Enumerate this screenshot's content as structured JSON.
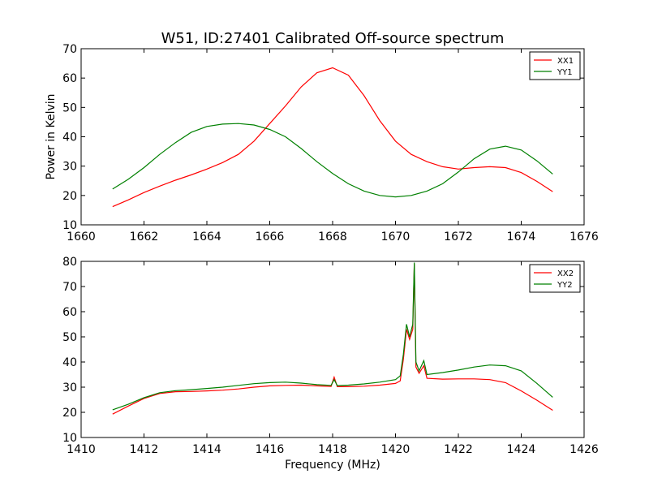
{
  "title": "W51, ID:27401 Calibrated Off-source spectrum",
  "chart_data": [
    {
      "type": "line",
      "title": "W51, ID:27401 Calibrated Off-source spectrum",
      "xlabel": "",
      "ylabel": "Power in Kelvin",
      "xlim": [
        1660,
        1676
      ],
      "ylim": [
        10,
        70
      ],
      "xticks": [
        1660,
        1662,
        1664,
        1666,
        1668,
        1670,
        1672,
        1674,
        1676
      ],
      "yticks": [
        10,
        20,
        30,
        40,
        50,
        60,
        70
      ],
      "grid": false,
      "legend": "top-right",
      "series": [
        {
          "name": "XX1",
          "color": "#ff0000",
          "x": [
            1661.0,
            1661.5,
            1662.0,
            1662.5,
            1663.0,
            1663.5,
            1664.0,
            1664.5,
            1665.0,
            1665.5,
            1666.0,
            1666.5,
            1667.0,
            1667.5,
            1668.0,
            1668.5,
            1669.0,
            1669.5,
            1670.0,
            1670.5,
            1671.0,
            1671.5,
            1672.0,
            1672.5,
            1673.0,
            1673.5,
            1674.0,
            1674.5,
            1675.0
          ],
          "y": [
            16.2,
            18.5,
            21.0,
            23.2,
            25.2,
            27.0,
            29.0,
            31.2,
            34.0,
            38.5,
            44.5,
            50.5,
            57.0,
            61.8,
            63.5,
            61.0,
            54.0,
            45.5,
            38.5,
            34.0,
            31.5,
            29.8,
            29.0,
            29.5,
            29.8,
            29.5,
            27.8,
            24.8,
            21.3
          ]
        },
        {
          "name": "YY1",
          "color": "#008000",
          "x": [
            1661.0,
            1661.5,
            1662.0,
            1662.5,
            1663.0,
            1663.5,
            1664.0,
            1664.5,
            1665.0,
            1665.5,
            1666.0,
            1666.5,
            1667.0,
            1667.5,
            1668.0,
            1668.5,
            1669.0,
            1669.5,
            1670.0,
            1670.5,
            1671.0,
            1671.5,
            1672.0,
            1672.5,
            1673.0,
            1673.5,
            1674.0,
            1674.5,
            1675.0
          ],
          "y": [
            22.2,
            25.5,
            29.5,
            34.0,
            38.0,
            41.5,
            43.5,
            44.3,
            44.5,
            44.0,
            42.5,
            40.0,
            36.0,
            31.5,
            27.5,
            24.0,
            21.5,
            20.0,
            19.5,
            20.0,
            21.5,
            24.0,
            28.0,
            32.5,
            35.8,
            36.8,
            35.5,
            31.8,
            27.3
          ]
        }
      ]
    },
    {
      "type": "line",
      "title": "",
      "xlabel": "Frequency (MHz)",
      "ylabel": "",
      "xlim": [
        1410,
        1426
      ],
      "ylim": [
        10,
        80
      ],
      "xticks": [
        1410,
        1412,
        1414,
        1416,
        1418,
        1420,
        1422,
        1424,
        1426
      ],
      "yticks": [
        10,
        20,
        30,
        40,
        50,
        60,
        70,
        80
      ],
      "grid": false,
      "legend": "top-right",
      "series": [
        {
          "name": "XX2",
          "color": "#ff0000",
          "x": [
            1411.0,
            1411.5,
            1412.0,
            1412.5,
            1413.0,
            1413.5,
            1414.0,
            1414.5,
            1415.0,
            1415.5,
            1416.0,
            1416.5,
            1417.0,
            1417.5,
            1417.95,
            1418.05,
            1418.15,
            1418.5,
            1419.0,
            1419.5,
            1420.0,
            1420.15,
            1420.25,
            1420.35,
            1420.45,
            1420.55,
            1420.6,
            1420.65,
            1420.75,
            1420.9,
            1421.0,
            1421.5,
            1422.0,
            1422.5,
            1423.0,
            1423.5,
            1424.0,
            1424.5,
            1425.0
          ],
          "y": [
            19.3,
            22.5,
            25.5,
            27.5,
            28.2,
            28.3,
            28.5,
            28.8,
            29.3,
            30.0,
            30.5,
            30.7,
            30.8,
            30.5,
            30.3,
            34.0,
            30.2,
            30.2,
            30.4,
            30.8,
            31.5,
            32.5,
            41.0,
            53.0,
            49.0,
            53.0,
            79.0,
            38.0,
            35.5,
            38.5,
            33.5,
            33.2,
            33.3,
            33.3,
            33.0,
            31.8,
            28.5,
            24.8,
            20.8
          ]
        },
        {
          "name": "YY2",
          "color": "#008000",
          "x": [
            1411.0,
            1411.5,
            1412.0,
            1412.5,
            1413.0,
            1413.5,
            1414.0,
            1414.5,
            1415.0,
            1415.5,
            1416.0,
            1416.5,
            1417.0,
            1417.5,
            1417.95,
            1418.05,
            1418.15,
            1418.5,
            1419.0,
            1419.5,
            1420.0,
            1420.15,
            1420.25,
            1420.35,
            1420.45,
            1420.55,
            1420.6,
            1420.65,
            1420.75,
            1420.9,
            1421.0,
            1421.5,
            1422.0,
            1422.5,
            1423.0,
            1423.5,
            1424.0,
            1424.5,
            1425.0
          ],
          "y": [
            21.0,
            23.2,
            25.8,
            27.8,
            28.6,
            29.0,
            29.5,
            30.0,
            30.7,
            31.4,
            31.8,
            32.0,
            31.6,
            31.0,
            30.7,
            33.0,
            30.6,
            30.8,
            31.3,
            32.0,
            33.0,
            34.5,
            43.0,
            55.0,
            50.0,
            55.0,
            79.5,
            40.0,
            36.5,
            40.5,
            35.0,
            35.8,
            36.8,
            38.0,
            38.8,
            38.5,
            36.5,
            31.5,
            26.0
          ]
        }
      ]
    }
  ]
}
